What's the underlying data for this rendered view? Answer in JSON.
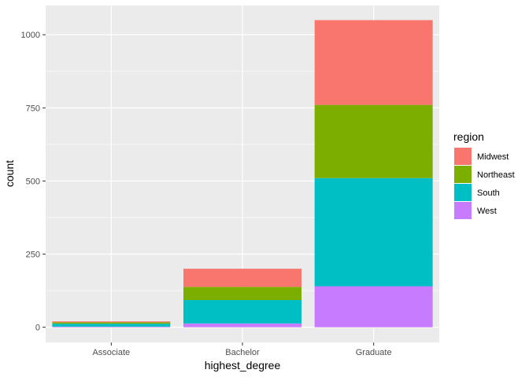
{
  "chart_data": {
    "type": "bar",
    "stacked": true,
    "categories": [
      "Associate",
      "Bachelor",
      "Graduate"
    ],
    "series": [
      {
        "name": "Midwest",
        "color": "#F8766D",
        "values": [
          3,
          62,
          290
        ]
      },
      {
        "name": "Northeast",
        "color": "#7CAE00",
        "values": [
          5,
          45,
          250
        ]
      },
      {
        "name": "South",
        "color": "#00BFC4",
        "values": [
          10,
          80,
          370
        ]
      },
      {
        "name": "West",
        "color": "#C77CFF",
        "values": [
          2,
          13,
          140
        ]
      }
    ],
    "xlabel": "highest_degree",
    "ylabel": "count",
    "ylim": [
      -52,
      1100
    ],
    "yticks": [
      0,
      250,
      500,
      750,
      1000
    ],
    "grid": true,
    "legend": {
      "title": "region",
      "position": "right"
    },
    "panel_background": "#EBEBEB",
    "grid_color": "#FFFFFF"
  }
}
